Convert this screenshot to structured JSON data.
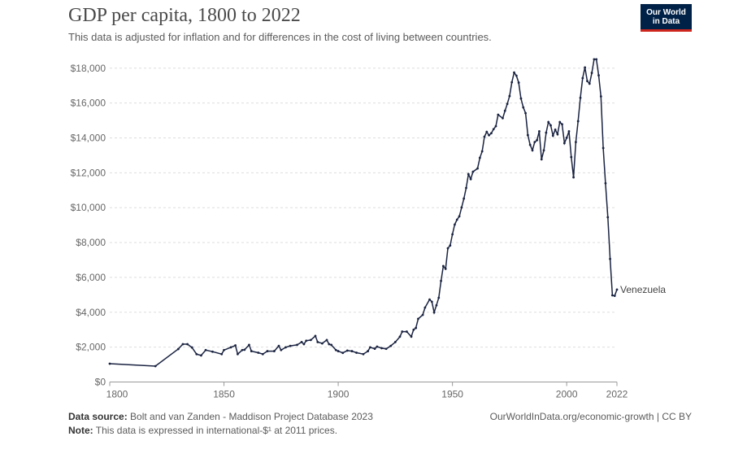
{
  "header": {
    "title": "GDP per capita, 1800 to 2022",
    "subtitle": "This data is adjusted for inflation and for differences in the cost of living between countries.",
    "logo": "Our World in Data"
  },
  "colors": {
    "line": "#1a2341",
    "grid": "#dddddd",
    "axis": "#999999",
    "logo_bg": "#002147",
    "logo_accent": "#ce261e"
  },
  "chart_data": {
    "type": "line",
    "title": "GDP per capita, 1800 to 2022",
    "ylim": [
      0,
      18000
    ],
    "xlim": [
      1800,
      2022
    ],
    "y_ticks": [
      0,
      2000,
      4000,
      6000,
      8000,
      10000,
      12000,
      14000,
      16000,
      18000
    ],
    "y_tick_labels": [
      "$0",
      "$2,000",
      "$4,000",
      "$6,000",
      "$8,000",
      "$10,000",
      "$12,000",
      "$14,000",
      "$16,000",
      "$18,000"
    ],
    "x_ticks": [
      1800,
      1850,
      1900,
      1950,
      2000,
      2022
    ],
    "x_tick_labels": [
      "1800",
      "1850",
      "1900",
      "1950",
      "2000",
      "2022"
    ],
    "grid": "horizontal dashed",
    "series": [
      {
        "name": "Venezuela",
        "x": [
          1800,
          1820,
          1830,
          1832,
          1834,
          1836,
          1838,
          1840,
          1842,
          1845,
          1849,
          1850,
          1853,
          1855,
          1856,
          1858,
          1859,
          1861,
          1862,
          1865,
          1867,
          1869,
          1872,
          1874,
          1875,
          1877,
          1879,
          1882,
          1884,
          1885,
          1886,
          1888,
          1890,
          1891,
          1893,
          1895,
          1896,
          1897,
          1899,
          1900,
          1902,
          1904,
          1906,
          1908,
          1911,
          1913,
          1914,
          1916,
          1917,
          1919,
          1921,
          1923,
          1925,
          1927,
          1928,
          1930,
          1932,
          1933,
          1934,
          1935,
          1937,
          1938,
          1940,
          1941,
          1942,
          1943,
          1944,
          1945,
          1946,
          1947,
          1948,
          1949,
          1950,
          1951,
          1952,
          1953,
          1954,
          1955,
          1956,
          1957,
          1958,
          1959,
          1961,
          1962,
          1963,
          1964,
          1965,
          1966,
          1967,
          1968,
          1969,
          1970,
          1972,
          1973,
          1974,
          1975,
          1976,
          1977,
          1978,
          1979,
          1980,
          1981,
          1982,
          1983,
          1984,
          1985,
          1986,
          1987,
          1988,
          1989,
          1990,
          1991,
          1992,
          1993,
          1994,
          1995,
          1996,
          1997,
          1998,
          1999,
          2000,
          2001,
          2002,
          2003,
          2004,
          2005,
          2006,
          2007,
          2008,
          2009,
          2010,
          2011,
          2012,
          2013,
          2014,
          2015,
          2016,
          2017,
          2018,
          2019,
          2020,
          2021,
          2022
        ],
        "y": [
          1050,
          910,
          1890,
          2170,
          2170,
          1980,
          1600,
          1520,
          1830,
          1740,
          1600,
          1830,
          1990,
          2100,
          1600,
          1830,
          1850,
          2130,
          1770,
          1680,
          1600,
          1770,
          1770,
          2070,
          1830,
          1990,
          2070,
          2130,
          2290,
          2170,
          2370,
          2410,
          2640,
          2290,
          2210,
          2410,
          2170,
          2130,
          1830,
          1770,
          1670,
          1800,
          1770,
          1680,
          1600,
          1770,
          1990,
          1910,
          2030,
          1940,
          1900,
          2070,
          2290,
          2600,
          2890,
          2890,
          2600,
          3000,
          3100,
          3620,
          3850,
          4270,
          4730,
          4600,
          3990,
          4400,
          4830,
          5800,
          6650,
          6490,
          7670,
          7830,
          8470,
          9030,
          9310,
          9500,
          10010,
          10520,
          11130,
          11920,
          11640,
          12060,
          12250,
          12860,
          13230,
          14070,
          14350,
          14150,
          14270,
          14500,
          14670,
          15330,
          15130,
          15560,
          15950,
          16400,
          17190,
          17750,
          17570,
          17170,
          16260,
          15750,
          15420,
          14160,
          13600,
          13290,
          13760,
          13870,
          14380,
          12770,
          13290,
          14300,
          14910,
          14720,
          14130,
          14470,
          14210,
          14910,
          14780,
          13700,
          14010,
          14380,
          12900,
          11740,
          13760,
          14960,
          16300,
          17430,
          18040,
          17260,
          17110,
          17730,
          18510,
          18510,
          17590,
          16380,
          13420,
          11400,
          9450,
          7060,
          4970,
          4940,
          5300
        ]
      }
    ]
  },
  "footer": {
    "source_label": "Data source:",
    "source": "Bolt and van Zanden - Maddison Project Database 2023",
    "note_label": "Note:",
    "note": "This data is expressed in international-$¹ at 2011 prices.",
    "link": "OurWorldInData.org/economic-growth | CC BY"
  }
}
